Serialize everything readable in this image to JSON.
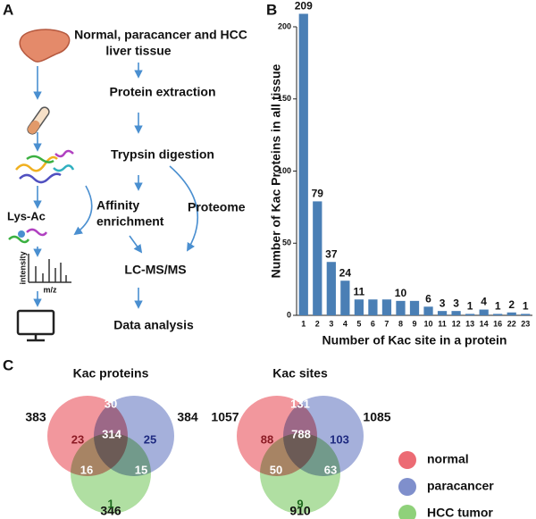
{
  "panel_labels": [
    "A",
    "B",
    "C"
  ],
  "workflow": {
    "steps": [
      [
        "Normal, paracancer and HCC",
        "liver tissue"
      ],
      [
        "Protein extraction"
      ],
      [
        "Trypsin digestion"
      ],
      [
        "Affinity",
        "enrichment"
      ],
      [
        "LC-MS/MS"
      ],
      [
        "Data analysis"
      ]
    ],
    "branch_label": "Proteome",
    "icon_labels": {
      "lys_ac": "Lys-Ac",
      "intensity": "intensity",
      "mz": "m/z"
    }
  },
  "chart_data": {
    "type": "bar",
    "categories": [
      "1",
      "2",
      "3",
      "4",
      "5",
      "6",
      "7",
      "8",
      "9",
      "10",
      "11",
      "12",
      "13",
      "14",
      "16",
      "22",
      "23"
    ],
    "values": [
      209,
      79,
      37,
      24,
      11,
      11,
      11,
      10,
      10,
      6,
      3,
      3,
      1,
      4,
      1,
      2,
      1
    ],
    "value_labels": [
      "209",
      "79",
      "37",
      "24",
      "11",
      null,
      null,
      "10",
      null,
      "6",
      "3",
      "3",
      "1",
      "4",
      "1",
      "2",
      "1"
    ],
    "color": "#4a7fb5",
    "ylim": [
      0,
      200
    ],
    "yticks": [
      0,
      50,
      100,
      150,
      200
    ],
    "x_label": "Number of Kac site in a protein",
    "y_label": "Number of Kac Proteins in all tissue"
  },
  "venn_diagrams": [
    {
      "title": "Kac proteins",
      "set_totals": [
        383,
        384,
        346
      ],
      "regions": {
        "normal_only": 23,
        "normal_paracancer": 30,
        "paracancer_only": 25,
        "normal_hcc": 16,
        "all": 314,
        "paracancer_hcc": 15,
        "hcc_only": 1
      }
    },
    {
      "title": "Kac sites",
      "set_totals": [
        1057,
        1085,
        910
      ],
      "regions": {
        "normal_only": 88,
        "normal_paracancer": 131,
        "paracancer_only": 103,
        "normal_hcc": 50,
        "all": 788,
        "paracancer_hcc": 63,
        "hcc_only": 9
      }
    }
  ],
  "sets": [
    {
      "name": "normal",
      "color": "#ec6b74"
    },
    {
      "name": "paracancer",
      "color": "#7f8fcc"
    },
    {
      "name": "HCC tumor",
      "color": "#8fd17a"
    }
  ]
}
